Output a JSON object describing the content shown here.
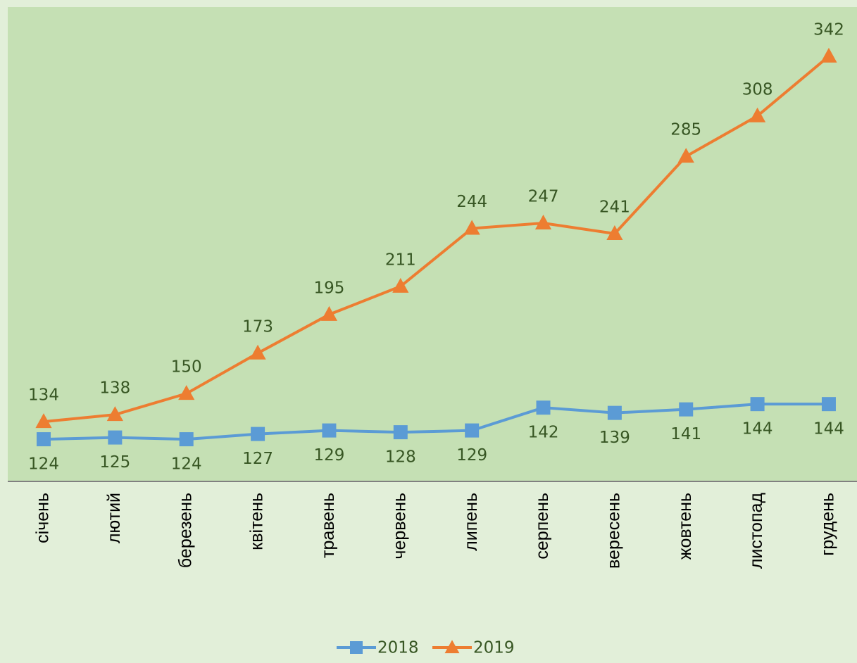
{
  "chart_data": {
    "type": "line",
    "categories": [
      "січень",
      "лютий",
      "березень",
      "квітень",
      "травень",
      "червень",
      "липень",
      "серпень",
      "вересень",
      "жовтень",
      "листопад",
      "грудень"
    ],
    "series": [
      {
        "name": "2018",
        "color": "#5b9bd5",
        "marker": "square",
        "values": [
          124,
          125,
          124,
          127,
          129,
          128,
          129,
          142,
          139,
          141,
          144,
          144
        ]
      },
      {
        "name": "2019",
        "color": "#ed7d31",
        "marker": "triangle",
        "values": [
          134,
          138,
          150,
          173,
          195,
          211,
          244,
          247,
          241,
          285,
          308,
          342
        ]
      }
    ],
    "ylim": [
      100,
      370
    ],
    "legend": "bottom"
  }
}
